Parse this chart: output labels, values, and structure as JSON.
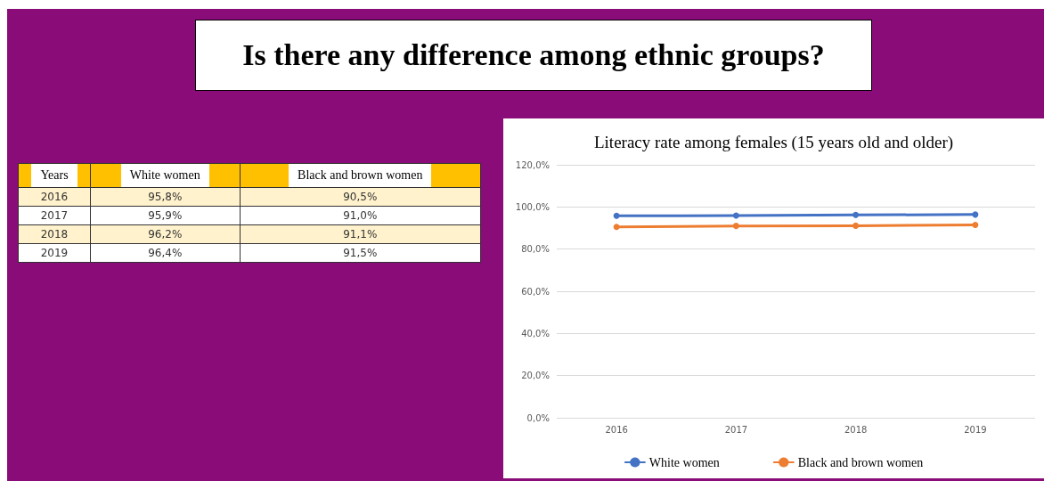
{
  "chart_data": {
    "type": "line",
    "title": "Is there any difference among ethnic groups?",
    "subtitle": "Literacy rate among females (15 years old and older)",
    "annotations": [
      "Years",
      "95,8%",
      "90,5%",
      "95,9%",
      "91,0%",
      "96,2%",
      "91,1%",
      "96,4%",
      "91,5%"
    ],
    "categories": [
      "2016",
      "2017",
      "2018",
      "2019"
    ],
    "series": [
      {
        "name": "White women",
        "color": "#4472c4",
        "values": [
          95.8,
          95.9,
          96.2,
          96.4
        ]
      },
      {
        "name": "Black and brown women",
        "color": "#ed7d31",
        "values": [
          90.5,
          91.0,
          91.1,
          91.5
        ]
      }
    ],
    "ylim": [
      0,
      120
    ],
    "yticks": [
      {
        "value": 0,
        "label": "0,0%"
      },
      {
        "value": 20,
        "label": "20,0%"
      },
      {
        "value": 40,
        "label": "40,0%"
      },
      {
        "value": 60,
        "label": "60,0%"
      },
      {
        "value": 80,
        "label": "80,0%"
      },
      {
        "value": 100,
        "label": "100,0%"
      },
      {
        "value": 120,
        "label": "120,0%"
      }
    ],
    "grid": "y",
    "legend": "bottom",
    "marker": "circle",
    "line_style": "solid"
  }
}
